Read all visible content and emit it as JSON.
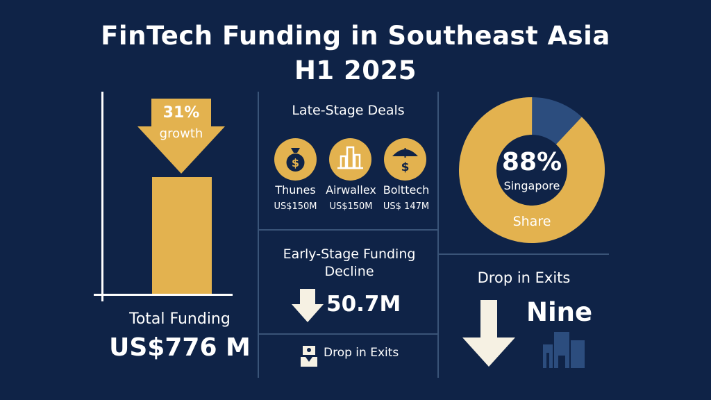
{
  "title": {
    "line1": "FinTech Funding in Southeast Asia",
    "line2": "H1 2025"
  },
  "colors": {
    "background": "#0f2347",
    "accent_gold": "#e3b24f",
    "muted_blue": "#2c4d7e",
    "cream": "#f6f1e3"
  },
  "total_funding": {
    "growth_value": "31%",
    "growth_label": "growth",
    "label": "Total Funding",
    "amount": "US$776 M"
  },
  "late_stage": {
    "heading": "Late-Stage Deals",
    "deals": [
      {
        "name": "Thunes",
        "amount": "US$150M",
        "icon": "money-bag-icon"
      },
      {
        "name": "Airwallex",
        "amount": "US$150M",
        "icon": "buildings-icon"
      },
      {
        "name": "Bolttech",
        "amount": "US$ 147M",
        "icon": "umbrella-dollar-icon"
      }
    ]
  },
  "early_stage": {
    "heading_line1": "Early-Stage Funding",
    "heading_line2": "Decline",
    "value": "50.7M",
    "icon": "arrow-down-icon"
  },
  "exits_small": {
    "label": "Drop in Exits",
    "icon": "exit-icon"
  },
  "singapore_share": {
    "percent": "88%",
    "country": "Singapore",
    "label": "Share",
    "share_fraction": 0.88
  },
  "exits": {
    "heading": "Drop in Exits",
    "value": "Nine",
    "icons": [
      "arrow-down-icon",
      "building-icon"
    ]
  }
}
